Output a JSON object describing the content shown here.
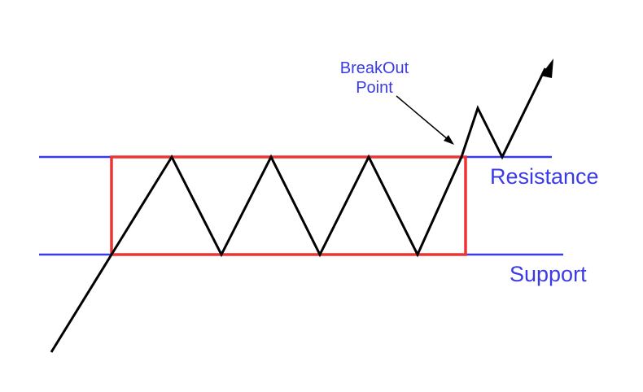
{
  "diagram": {
    "labels": {
      "breakout_line1": "BreakOut",
      "breakout_line2": "Point",
      "resistance": "Resistance",
      "support": "Support"
    },
    "colors": {
      "level_lines": "#3b3be6",
      "range_box": "#ee3333",
      "price_path": "#000000",
      "label_text": "#3b3be6"
    }
  }
}
